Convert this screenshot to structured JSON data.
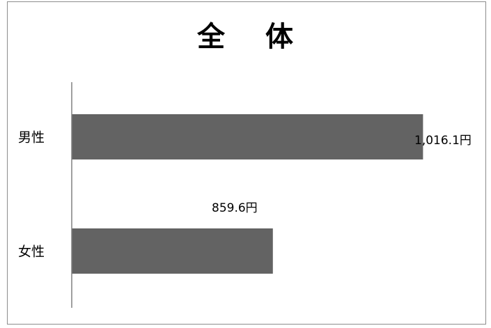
{
  "chart_data": {
    "type": "bar",
    "orientation": "horizontal",
    "title": "全 体",
    "categories": [
      "男性",
      "女性"
    ],
    "values": [
      1016.1,
      859.6
    ],
    "data_labels": [
      "1,016.1円",
      "859.6円"
    ],
    "xlim": [
      650,
      1100
    ],
    "grid": false,
    "legend": "none",
    "bar_color": "#636363",
    "axis_color": "#808080"
  }
}
